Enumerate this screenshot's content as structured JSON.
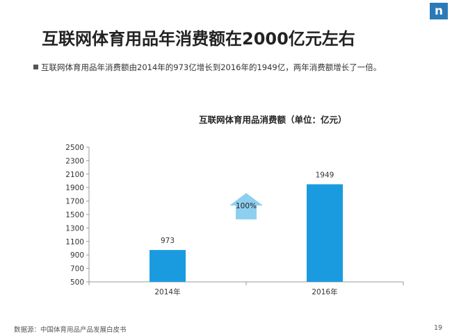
{
  "logo_text": "n",
  "title": "互联网体育用品年消费额在2000亿元左右",
  "subtitle": "互联网体育用品年消费额由2014年的973亿增长到2016年的1949亿，两年消费额增长了一倍。",
  "source": "数据源：中国体育用品产品发展白皮书",
  "page_number": "19",
  "colors": {
    "bar": "#1a9be0",
    "arrow": "#8ecff0",
    "axis": "#999999",
    "logo": "#2a7ab8"
  },
  "chart_data": {
    "type": "bar",
    "title": "互联网体育用品消费额（单位：亿元）",
    "categories": [
      "2014年",
      "2016年"
    ],
    "values": [
      973,
      1949
    ],
    "value_labels": [
      "973",
      "1949"
    ],
    "ylim": [
      500,
      2500
    ],
    "yticks": [
      "500",
      "700",
      "900",
      "1100",
      "1300",
      "1500",
      "1700",
      "1900",
      "2100",
      "2300",
      "2500"
    ],
    "grid": false,
    "annotation": {
      "text": "100%",
      "shape": "up-arrow"
    }
  }
}
